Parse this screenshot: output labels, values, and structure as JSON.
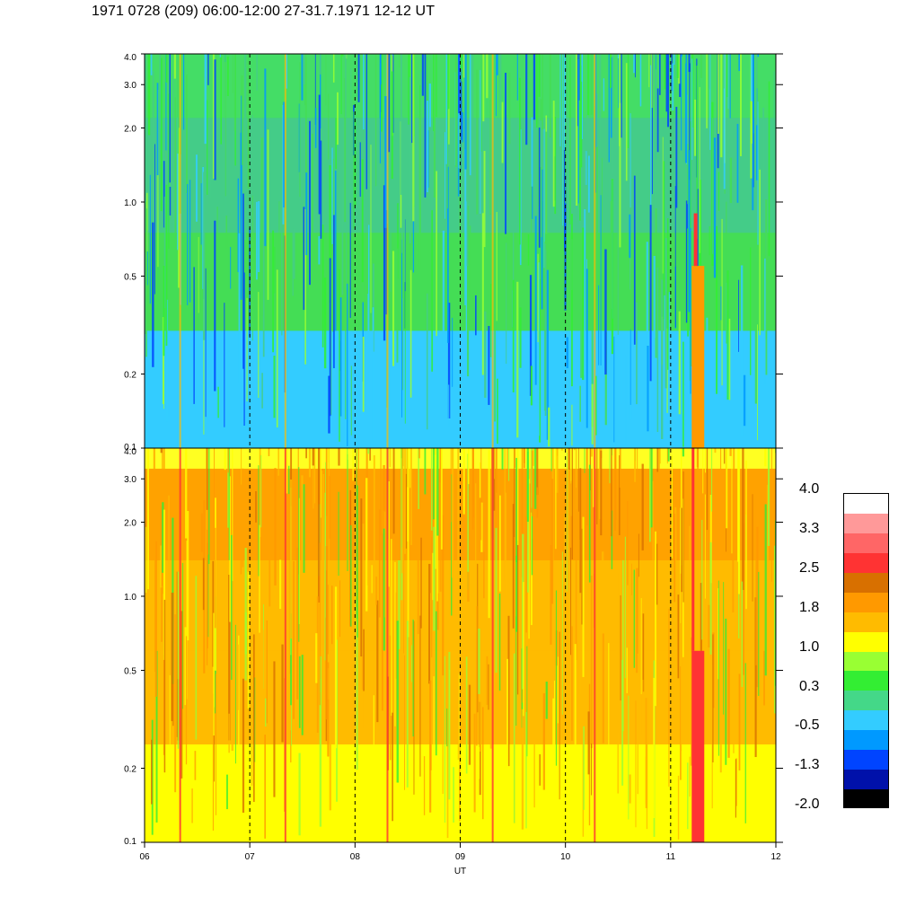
{
  "title": "1971 0728 (209) 06:00-12:00 27-31.7.1971  12-12 UT",
  "chart_data": {
    "type": "heatmap",
    "xlabel": "UT",
    "x_ticks": [
      "06",
      "07",
      "08",
      "09",
      "10",
      "11",
      "12"
    ],
    "xlim": [
      6,
      12
    ],
    "ylim": [
      0.1,
      4.0
    ],
    "y_scale": "log",
    "dashed_vertical_lines_at": [
      7,
      8,
      9,
      10,
      11
    ],
    "panels": [
      {
        "name": "upper",
        "y_ticks": [
          "0.1",
          "0.2",
          "0.5",
          "1.0",
          "2.0",
          "3.0",
          "4.0"
        ],
        "dominant_levels": "cyan to green (-0.5 to 0.3), darker blue streaks; orange-red burst near 11.2 UT below 0.6"
      },
      {
        "name": "lower",
        "y_ticks": [
          "0.1",
          "0.2",
          "0.5",
          "1.0",
          "2.0",
          "3.0",
          "4.0"
        ],
        "dominant_levels": "yellow to orange (1.0 to 1.8) above 0.5, yellow-green below; red streak near 11.2 UT"
      }
    ],
    "colorbar": {
      "labels": [
        "4.0",
        "3.3",
        "2.5",
        "1.8",
        "1.0",
        "0.3",
        "-0.5",
        "-1.3",
        "-2.0"
      ],
      "colors_top_to_bottom": [
        "#ffffff",
        "#ff9999",
        "#ff6666",
        "#ff3333",
        "#d87000",
        "#ff9900",
        "#ffbb00",
        "#ffff00",
        "#99ff33",
        "#33ee33",
        "#44d888",
        "#33ccff",
        "#0099ff",
        "#0044ff",
        "#0011aa",
        "#000000"
      ]
    }
  }
}
